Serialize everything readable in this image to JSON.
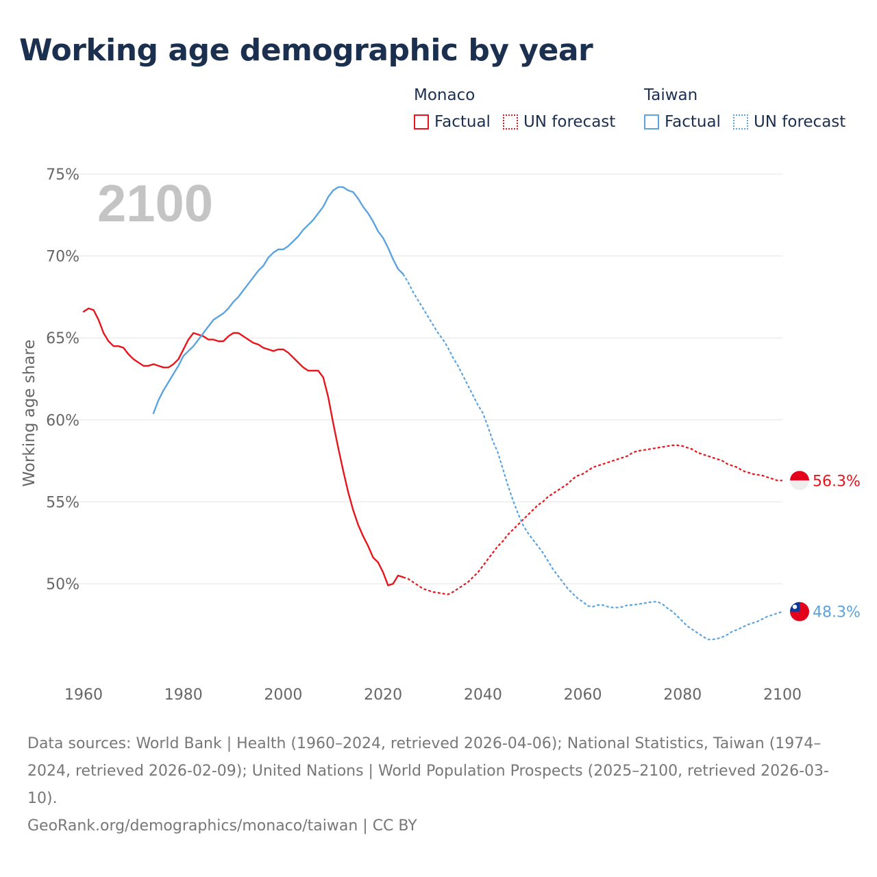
{
  "chart_data": {
    "type": "line",
    "title": "Working age demographic by year",
    "ylabel": "Working age share",
    "xlabel": "",
    "year_watermark": "2100",
    "xlim": [
      1960,
      2100
    ],
    "ylim": [
      45,
      75
    ],
    "x_ticks": [
      1960,
      1980,
      2000,
      2020,
      2040,
      2060,
      2080,
      2100
    ],
    "x_tick_labels": [
      "1960",
      "1980",
      "2000",
      "2020",
      "2040",
      "2060",
      "2080",
      "2100"
    ],
    "y_ticks": [
      50,
      55,
      60,
      65,
      70,
      75
    ],
    "y_tick_labels": [
      "50%",
      "55%",
      "60%",
      "65%",
      "70%",
      "75%"
    ],
    "legend": {
      "groups": [
        {
          "name": "Monaco",
          "factual_label": "Factual",
          "forecast_label": "UN forecast"
        },
        {
          "name": "Taiwan",
          "factual_label": "Factual",
          "forecast_label": "UN forecast"
        }
      ]
    },
    "series": [
      {
        "name": "Monaco",
        "color": "#e8141c",
        "end_label": "56.3%",
        "factual": [
          [
            1960,
            66.6
          ],
          [
            1961,
            66.8
          ],
          [
            1962,
            66.7
          ],
          [
            1963,
            66.1
          ],
          [
            1964,
            65.3
          ],
          [
            1965,
            64.8
          ],
          [
            1966,
            64.5
          ],
          [
            1967,
            64.5
          ],
          [
            1968,
            64.4
          ],
          [
            1969,
            64.0
          ],
          [
            1970,
            63.7
          ],
          [
            1971,
            63.5
          ],
          [
            1972,
            63.3
          ],
          [
            1973,
            63.3
          ],
          [
            1974,
            63.4
          ],
          [
            1975,
            63.3
          ],
          [
            1976,
            63.2
          ],
          [
            1977,
            63.2
          ],
          [
            1978,
            63.4
          ],
          [
            1979,
            63.7
          ],
          [
            1980,
            64.3
          ],
          [
            1981,
            64.9
          ],
          [
            1982,
            65.3
          ],
          [
            1983,
            65.2
          ],
          [
            1984,
            65.1
          ],
          [
            1985,
            64.9
          ],
          [
            1986,
            64.9
          ],
          [
            1987,
            64.8
          ],
          [
            1988,
            64.8
          ],
          [
            1989,
            65.1
          ],
          [
            1990,
            65.3
          ],
          [
            1991,
            65.3
          ],
          [
            1992,
            65.1
          ],
          [
            1993,
            64.9
          ],
          [
            1994,
            64.7
          ],
          [
            1995,
            64.6
          ],
          [
            1996,
            64.4
          ],
          [
            1997,
            64.3
          ],
          [
            1998,
            64.2
          ],
          [
            1999,
            64.3
          ],
          [
            2000,
            64.3
          ],
          [
            2001,
            64.1
          ],
          [
            2002,
            63.8
          ],
          [
            2003,
            63.5
          ],
          [
            2004,
            63.2
          ],
          [
            2005,
            63.0
          ],
          [
            2006,
            63.0
          ],
          [
            2007,
            63.0
          ],
          [
            2008,
            62.6
          ],
          [
            2009,
            61.4
          ],
          [
            2010,
            59.8
          ],
          [
            2011,
            58.3
          ],
          [
            2012,
            56.9
          ],
          [
            2013,
            55.6
          ],
          [
            2014,
            54.5
          ],
          [
            2015,
            53.6
          ],
          [
            2016,
            52.9
          ],
          [
            2017,
            52.3
          ],
          [
            2018,
            51.6
          ],
          [
            2019,
            51.3
          ],
          [
            2020,
            50.7
          ],
          [
            2021,
            49.9
          ],
          [
            2022,
            50.0
          ],
          [
            2023,
            50.5
          ],
          [
            2024,
            50.4
          ]
        ],
        "forecast": [
          [
            2024,
            50.4
          ],
          [
            2025,
            50.3
          ],
          [
            2026,
            50.1
          ],
          [
            2027,
            49.9
          ],
          [
            2028,
            49.7
          ],
          [
            2029,
            49.6
          ],
          [
            2030,
            49.5
          ],
          [
            2031,
            49.45
          ],
          [
            2032,
            49.4
          ],
          [
            2033,
            49.35
          ],
          [
            2034,
            49.5
          ],
          [
            2035,
            49.7
          ],
          [
            2036,
            49.9
          ],
          [
            2037,
            50.1
          ],
          [
            2038,
            50.4
          ],
          [
            2039,
            50.7
          ],
          [
            2040,
            51.1
          ],
          [
            2041,
            51.5
          ],
          [
            2042,
            51.9
          ],
          [
            2043,
            52.3
          ],
          [
            2044,
            52.6
          ],
          [
            2045,
            53.0
          ],
          [
            2046,
            53.3
          ],
          [
            2047,
            53.6
          ],
          [
            2048,
            53.9
          ],
          [
            2049,
            54.2
          ],
          [
            2050,
            54.5
          ],
          [
            2051,
            54.8
          ],
          [
            2052,
            55.0
          ],
          [
            2053,
            55.3
          ],
          [
            2054,
            55.5
          ],
          [
            2055,
            55.7
          ],
          [
            2056,
            55.9
          ],
          [
            2057,
            56.1
          ],
          [
            2058,
            56.4
          ],
          [
            2059,
            56.6
          ],
          [
            2060,
            56.7
          ],
          [
            2061,
            56.9
          ],
          [
            2062,
            57.1
          ],
          [
            2063,
            57.2
          ],
          [
            2064,
            57.3
          ],
          [
            2065,
            57.4
          ],
          [
            2066,
            57.5
          ],
          [
            2067,
            57.6
          ],
          [
            2068,
            57.7
          ],
          [
            2069,
            57.8
          ],
          [
            2070,
            58.0
          ],
          [
            2071,
            58.1
          ],
          [
            2072,
            58.15
          ],
          [
            2073,
            58.2
          ],
          [
            2074,
            58.25
          ],
          [
            2075,
            58.3
          ],
          [
            2076,
            58.35
          ],
          [
            2077,
            58.4
          ],
          [
            2078,
            58.45
          ],
          [
            2079,
            58.45
          ],
          [
            2080,
            58.4
          ],
          [
            2081,
            58.3
          ],
          [
            2082,
            58.2
          ],
          [
            2083,
            58.0
          ],
          [
            2084,
            57.9
          ],
          [
            2085,
            57.8
          ],
          [
            2086,
            57.7
          ],
          [
            2087,
            57.6
          ],
          [
            2088,
            57.5
          ],
          [
            2089,
            57.3
          ],
          [
            2090,
            57.2
          ],
          [
            2091,
            57.1
          ],
          [
            2092,
            56.9
          ],
          [
            2093,
            56.8
          ],
          [
            2094,
            56.7
          ],
          [
            2095,
            56.65
          ],
          [
            2096,
            56.6
          ],
          [
            2097,
            56.5
          ],
          [
            2098,
            56.4
          ],
          [
            2099,
            56.3
          ],
          [
            2100,
            56.3
          ]
        ]
      },
      {
        "name": "Taiwan",
        "color": "#5ba3e0",
        "end_label": "48.3%",
        "factual": [
          [
            1974,
            60.4
          ],
          [
            1975,
            61.2
          ],
          [
            1976,
            61.8
          ],
          [
            1977,
            62.3
          ],
          [
            1978,
            62.8
          ],
          [
            1979,
            63.3
          ],
          [
            1980,
            63.9
          ],
          [
            1981,
            64.2
          ],
          [
            1982,
            64.5
          ],
          [
            1983,
            64.9
          ],
          [
            1984,
            65.3
          ],
          [
            1985,
            65.7
          ],
          [
            1986,
            66.1
          ],
          [
            1987,
            66.3
          ],
          [
            1988,
            66.5
          ],
          [
            1989,
            66.8
          ],
          [
            1990,
            67.2
          ],
          [
            1991,
            67.5
          ],
          [
            1992,
            67.9
          ],
          [
            1993,
            68.3
          ],
          [
            1994,
            68.7
          ],
          [
            1995,
            69.1
          ],
          [
            1996,
            69.4
          ],
          [
            1997,
            69.9
          ],
          [
            1998,
            70.2
          ],
          [
            1999,
            70.4
          ],
          [
            2000,
            70.4
          ],
          [
            2001,
            70.6
          ],
          [
            2002,
            70.9
          ],
          [
            2003,
            71.2
          ],
          [
            2004,
            71.6
          ],
          [
            2005,
            71.9
          ],
          [
            2006,
            72.2
          ],
          [
            2007,
            72.6
          ],
          [
            2008,
            73.0
          ],
          [
            2009,
            73.6
          ],
          [
            2010,
            74.0
          ],
          [
            2011,
            74.2
          ],
          [
            2012,
            74.2
          ],
          [
            2013,
            74.0
          ],
          [
            2014,
            73.9
          ],
          [
            2015,
            73.5
          ],
          [
            2016,
            73.0
          ],
          [
            2017,
            72.6
          ],
          [
            2018,
            72.1
          ],
          [
            2019,
            71.5
          ],
          [
            2020,
            71.1
          ],
          [
            2021,
            70.5
          ],
          [
            2022,
            69.8
          ],
          [
            2023,
            69.2
          ],
          [
            2024,
            68.9
          ]
        ],
        "forecast": [
          [
            2024,
            68.9
          ],
          [
            2025,
            68.4
          ],
          [
            2026,
            67.8
          ],
          [
            2027,
            67.3
          ],
          [
            2028,
            66.8
          ],
          [
            2029,
            66.3
          ],
          [
            2030,
            65.8
          ],
          [
            2031,
            65.3
          ],
          [
            2032,
            64.9
          ],
          [
            2033,
            64.4
          ],
          [
            2034,
            63.8
          ],
          [
            2035,
            63.3
          ],
          [
            2036,
            62.7
          ],
          [
            2037,
            62.1
          ],
          [
            2038,
            61.5
          ],
          [
            2039,
            60.9
          ],
          [
            2040,
            60.4
          ],
          [
            2041,
            59.6
          ],
          [
            2042,
            58.7
          ],
          [
            2043,
            58.0
          ],
          [
            2044,
            57.0
          ],
          [
            2045,
            56.0
          ],
          [
            2046,
            55.1
          ],
          [
            2047,
            54.3
          ],
          [
            2048,
            53.6
          ],
          [
            2049,
            53.1
          ],
          [
            2050,
            52.7
          ],
          [
            2051,
            52.3
          ],
          [
            2052,
            51.9
          ],
          [
            2053,
            51.4
          ],
          [
            2054,
            50.9
          ],
          [
            2055,
            50.5
          ],
          [
            2056,
            50.1
          ],
          [
            2057,
            49.7
          ],
          [
            2058,
            49.4
          ],
          [
            2059,
            49.1
          ],
          [
            2060,
            48.9
          ],
          [
            2061,
            48.65
          ],
          [
            2062,
            48.6
          ],
          [
            2063,
            48.7
          ],
          [
            2064,
            48.7
          ],
          [
            2065,
            48.6
          ],
          [
            2066,
            48.55
          ],
          [
            2067,
            48.55
          ],
          [
            2068,
            48.6
          ],
          [
            2069,
            48.7
          ],
          [
            2070,
            48.7
          ],
          [
            2071,
            48.75
          ],
          [
            2072,
            48.8
          ],
          [
            2073,
            48.85
          ],
          [
            2074,
            48.9
          ],
          [
            2075,
            48.9
          ],
          [
            2076,
            48.75
          ],
          [
            2077,
            48.5
          ],
          [
            2078,
            48.3
          ],
          [
            2079,
            48.0
          ],
          [
            2080,
            47.7
          ],
          [
            2081,
            47.4
          ],
          [
            2082,
            47.2
          ],
          [
            2083,
            47.0
          ],
          [
            2084,
            46.8
          ],
          [
            2085,
            46.6
          ],
          [
            2086,
            46.6
          ],
          [
            2087,
            46.65
          ],
          [
            2088,
            46.75
          ],
          [
            2089,
            46.9
          ],
          [
            2090,
            47.1
          ],
          [
            2091,
            47.2
          ],
          [
            2092,
            47.35
          ],
          [
            2093,
            47.5
          ],
          [
            2094,
            47.6
          ],
          [
            2095,
            47.7
          ],
          [
            2096,
            47.85
          ],
          [
            2097,
            48.0
          ],
          [
            2098,
            48.1
          ],
          [
            2099,
            48.2
          ],
          [
            2100,
            48.3
          ]
        ]
      }
    ],
    "sources_text": "Data sources: World Bank | Health (1960–2024, retrieved 2026-04-06); National Statistics, Taiwan (1974–2024, retrieved 2026-02-09); United Nations | World Population Prospects (2025–2100, retrieved 2026-03-10).",
    "credit_text": "GeoRank.org/demographics/monaco/taiwan | CC BY"
  }
}
